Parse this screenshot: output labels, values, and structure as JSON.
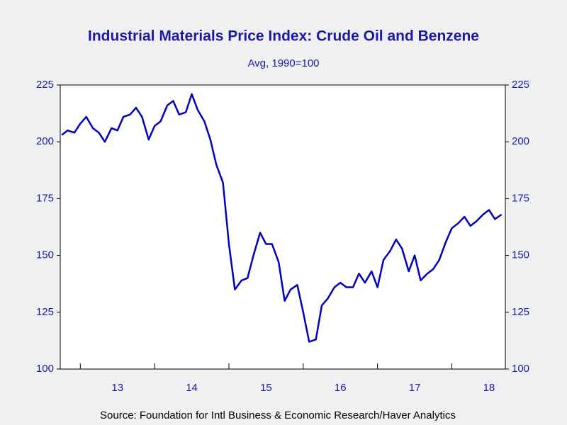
{
  "chart_data": {
    "type": "line",
    "title": "Industrial Materials Price Index: Crude Oil and Benzene",
    "subtitle": "Avg, 1990=100",
    "source": "Source:  Foundation for Intl Business & Economic Research/Haver Analytics",
    "x": [
      2012.75,
      2012.83,
      2012.92,
      2013.0,
      2013.08,
      2013.17,
      2013.25,
      2013.33,
      2013.42,
      2013.5,
      2013.58,
      2013.67,
      2013.75,
      2013.83,
      2013.92,
      2014.0,
      2014.08,
      2014.17,
      2014.25,
      2014.33,
      2014.42,
      2014.5,
      2014.58,
      2014.67,
      2014.75,
      2014.83,
      2014.92,
      2015.0,
      2015.08,
      2015.17,
      2015.25,
      2015.33,
      2015.42,
      2015.5,
      2015.58,
      2015.67,
      2015.75,
      2015.83,
      2015.92,
      2016.0,
      2016.08,
      2016.17,
      2016.25,
      2016.33,
      2016.42,
      2016.5,
      2016.58,
      2016.67,
      2016.75,
      2016.83,
      2016.92,
      2017.0,
      2017.08,
      2017.17,
      2017.25,
      2017.33,
      2017.42,
      2017.5,
      2017.58,
      2017.67,
      2017.75,
      2017.83,
      2017.92,
      2018.0,
      2018.08,
      2018.17,
      2018.25,
      2018.33,
      2018.42,
      2018.5,
      2018.58,
      2018.67
    ],
    "series": [
      {
        "color": "#0000c0",
        "values": [
          203,
          205,
          204,
          208,
          211,
          206,
          204,
          200,
          206,
          205,
          211,
          212,
          215,
          211,
          201,
          207,
          209,
          216,
          218,
          212,
          213,
          221,
          214,
          209,
          201,
          190,
          182,
          155,
          135,
          139,
          140,
          150,
          160,
          155,
          155,
          147,
          130,
          135,
          137,
          125,
          112,
          113,
          128,
          131,
          136,
          138,
          136,
          136,
          142,
          138,
          143,
          136,
          148,
          152,
          157,
          153,
          143,
          150,
          139,
          142,
          144,
          148,
          156,
          162,
          164,
          167,
          163,
          165,
          168,
          170,
          166,
          168
        ]
      }
    ],
    "xlim": [
      2012.73,
      2018.72
    ],
    "xticks": [
      {
        "value": 2013,
        "label": "13"
      },
      {
        "value": 2014,
        "label": "14"
      },
      {
        "value": 2015,
        "label": "15"
      },
      {
        "value": 2016,
        "label": "16"
      },
      {
        "value": 2017,
        "label": "17"
      },
      {
        "value": 2018,
        "label": "18"
      }
    ],
    "ylim": [
      100,
      225
    ],
    "yticks": [
      100,
      125,
      150,
      175,
      200,
      225
    ],
    "y2lim": [
      100,
      225
    ],
    "y2ticks": [
      100,
      125,
      150,
      175,
      200,
      225
    ]
  }
}
